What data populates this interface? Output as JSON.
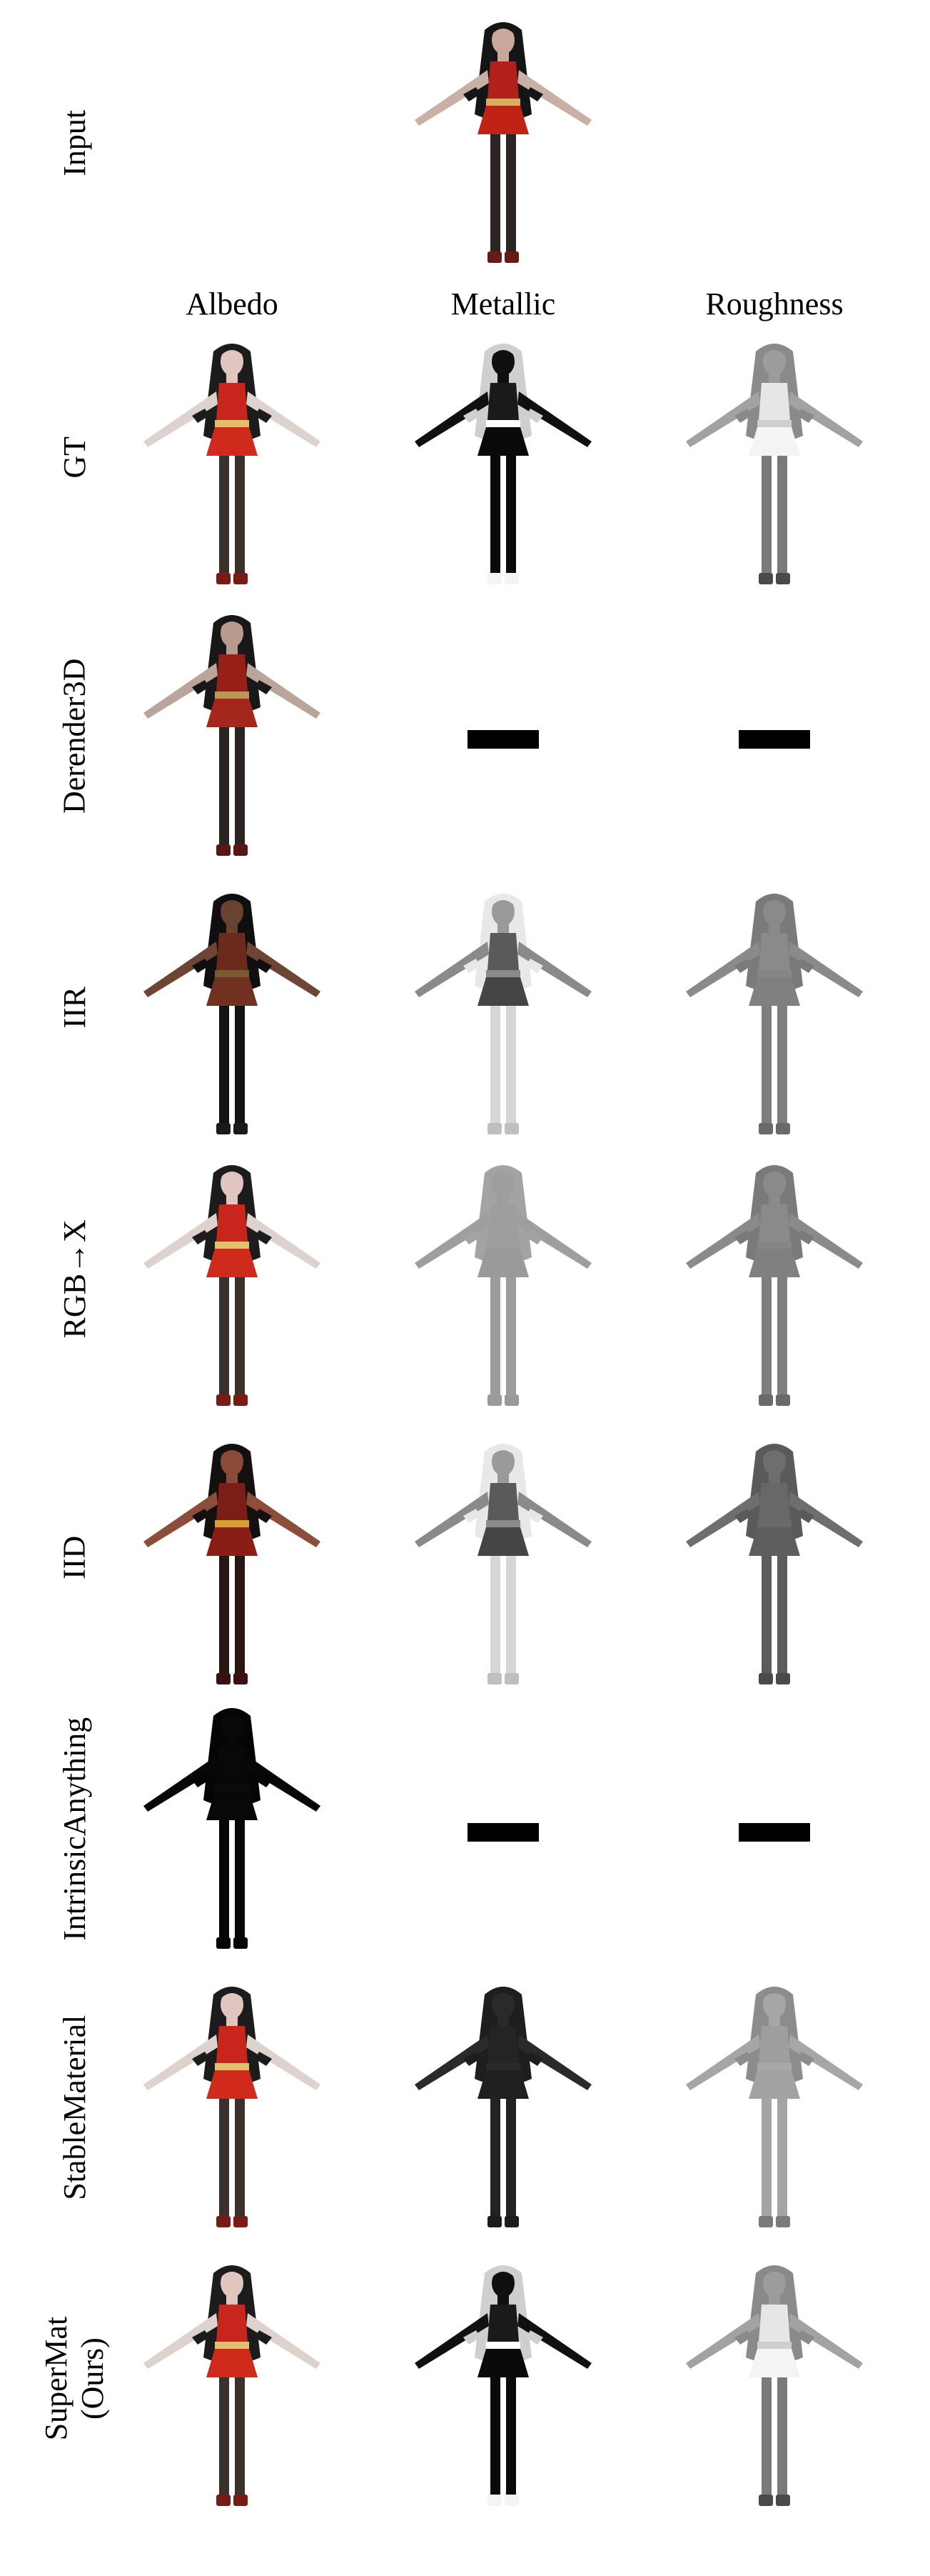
{
  "columns": [
    "Albedo",
    "Metallic",
    "Roughness"
  ],
  "rows": [
    {
      "label": "Input"
    },
    {
      "label": "GT",
      "cells": [
        "albedo-color",
        "metallic-map",
        "roughness-map"
      ]
    },
    {
      "label": "Derender3D",
      "cells": [
        "albedo-dim",
        "none",
        "none"
      ]
    },
    {
      "label": "IIR",
      "cells": [
        "albedo-dark",
        "metallic-bright",
        "roughness-gray"
      ]
    },
    {
      "label": "RGB→X",
      "cells": [
        "albedo-color",
        "flat-gray",
        "roughness-gray"
      ]
    },
    {
      "label": "IID",
      "cells": [
        "albedo-red",
        "metallic-bright",
        "roughness-dark"
      ]
    },
    {
      "label": "IntrinsicAnything",
      "cells": [
        "albedo-black",
        "none",
        "none"
      ]
    },
    {
      "label": "StableMaterial",
      "cells": [
        "albedo-color",
        "metallic-dark",
        "roughness-light"
      ]
    },
    {
      "label": "SuperMat\n(Ours)",
      "cells": [
        "albedo-color",
        "metallic-map",
        "roughness-map"
      ]
    }
  ]
}
